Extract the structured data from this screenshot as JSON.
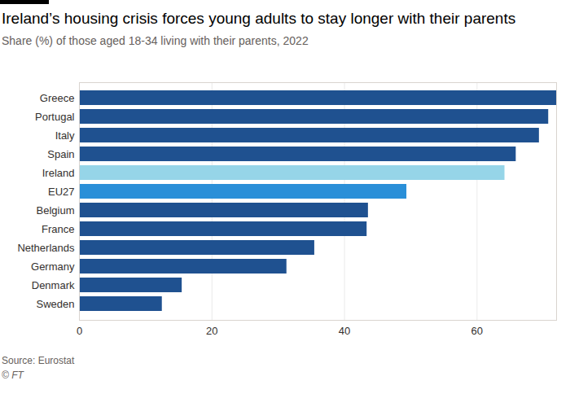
{
  "chart_data": {
    "type": "bar",
    "title": "Ireland’s housing crisis forces young adults to stay longer with their parents",
    "subtitle": "Share (%) of those aged 18-34 living with their parents, 2022",
    "source": "Source: Eurostat",
    "credit": "© FT",
    "orientation": "horizontal",
    "categories": [
      "Greece",
      "Portugal",
      "Italy",
      "Spain",
      "Ireland",
      "EU27",
      "Belgium",
      "France",
      "Netherlands",
      "Germany",
      "Denmark",
      "Sweden"
    ],
    "values": [
      72,
      70.8,
      69.4,
      65.9,
      64.2,
      49.4,
      43.6,
      43.4,
      35.5,
      31.3,
      15.5,
      12.5
    ],
    "colors": [
      "#1f5190",
      "#1f5190",
      "#1f5190",
      "#1f5190",
      "#96d5e8",
      "#2a8fd8",
      "#1f5190",
      "#1f5190",
      "#1f5190",
      "#1f5190",
      "#1f5190",
      "#1f5190"
    ],
    "xlim": [
      0,
      72
    ],
    "xticks": [
      0,
      20,
      40,
      60
    ],
    "grid": true
  }
}
